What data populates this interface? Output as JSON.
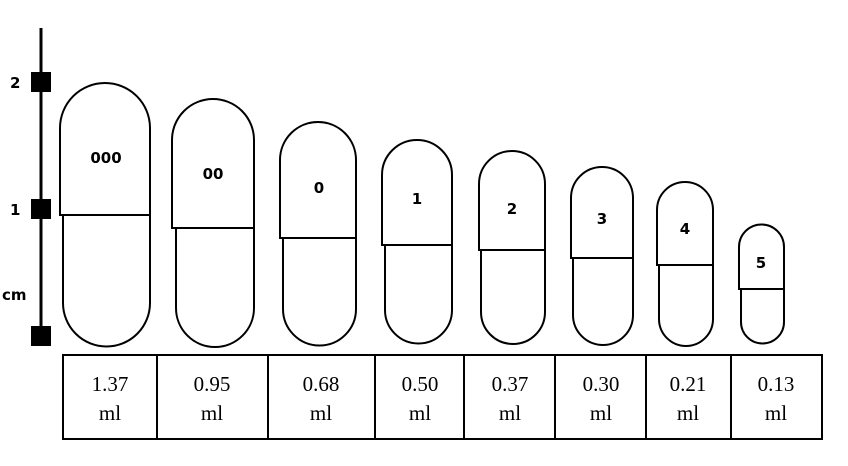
{
  "scale": {
    "unit_label": "cm",
    "ticks": [
      "2",
      "1"
    ]
  },
  "capsules": [
    {
      "size": "000",
      "volume_value": "1.37",
      "volume_unit": "ml"
    },
    {
      "size": "00",
      "volume_value": "0.95",
      "volume_unit": "ml"
    },
    {
      "size": "0",
      "volume_value": "0.68",
      "volume_unit": "ml"
    },
    {
      "size": "1",
      "volume_value": "0.50",
      "volume_unit": "ml"
    },
    {
      "size": "2",
      "volume_value": "0.37",
      "volume_unit": "ml"
    },
    {
      "size": "3",
      "volume_value": "0.30",
      "volume_unit": "ml"
    },
    {
      "size": "4",
      "volume_value": "0.21",
      "volume_unit": "ml"
    },
    {
      "size": "5",
      "volume_value": "0.13",
      "volume_unit": "ml"
    }
  ]
}
